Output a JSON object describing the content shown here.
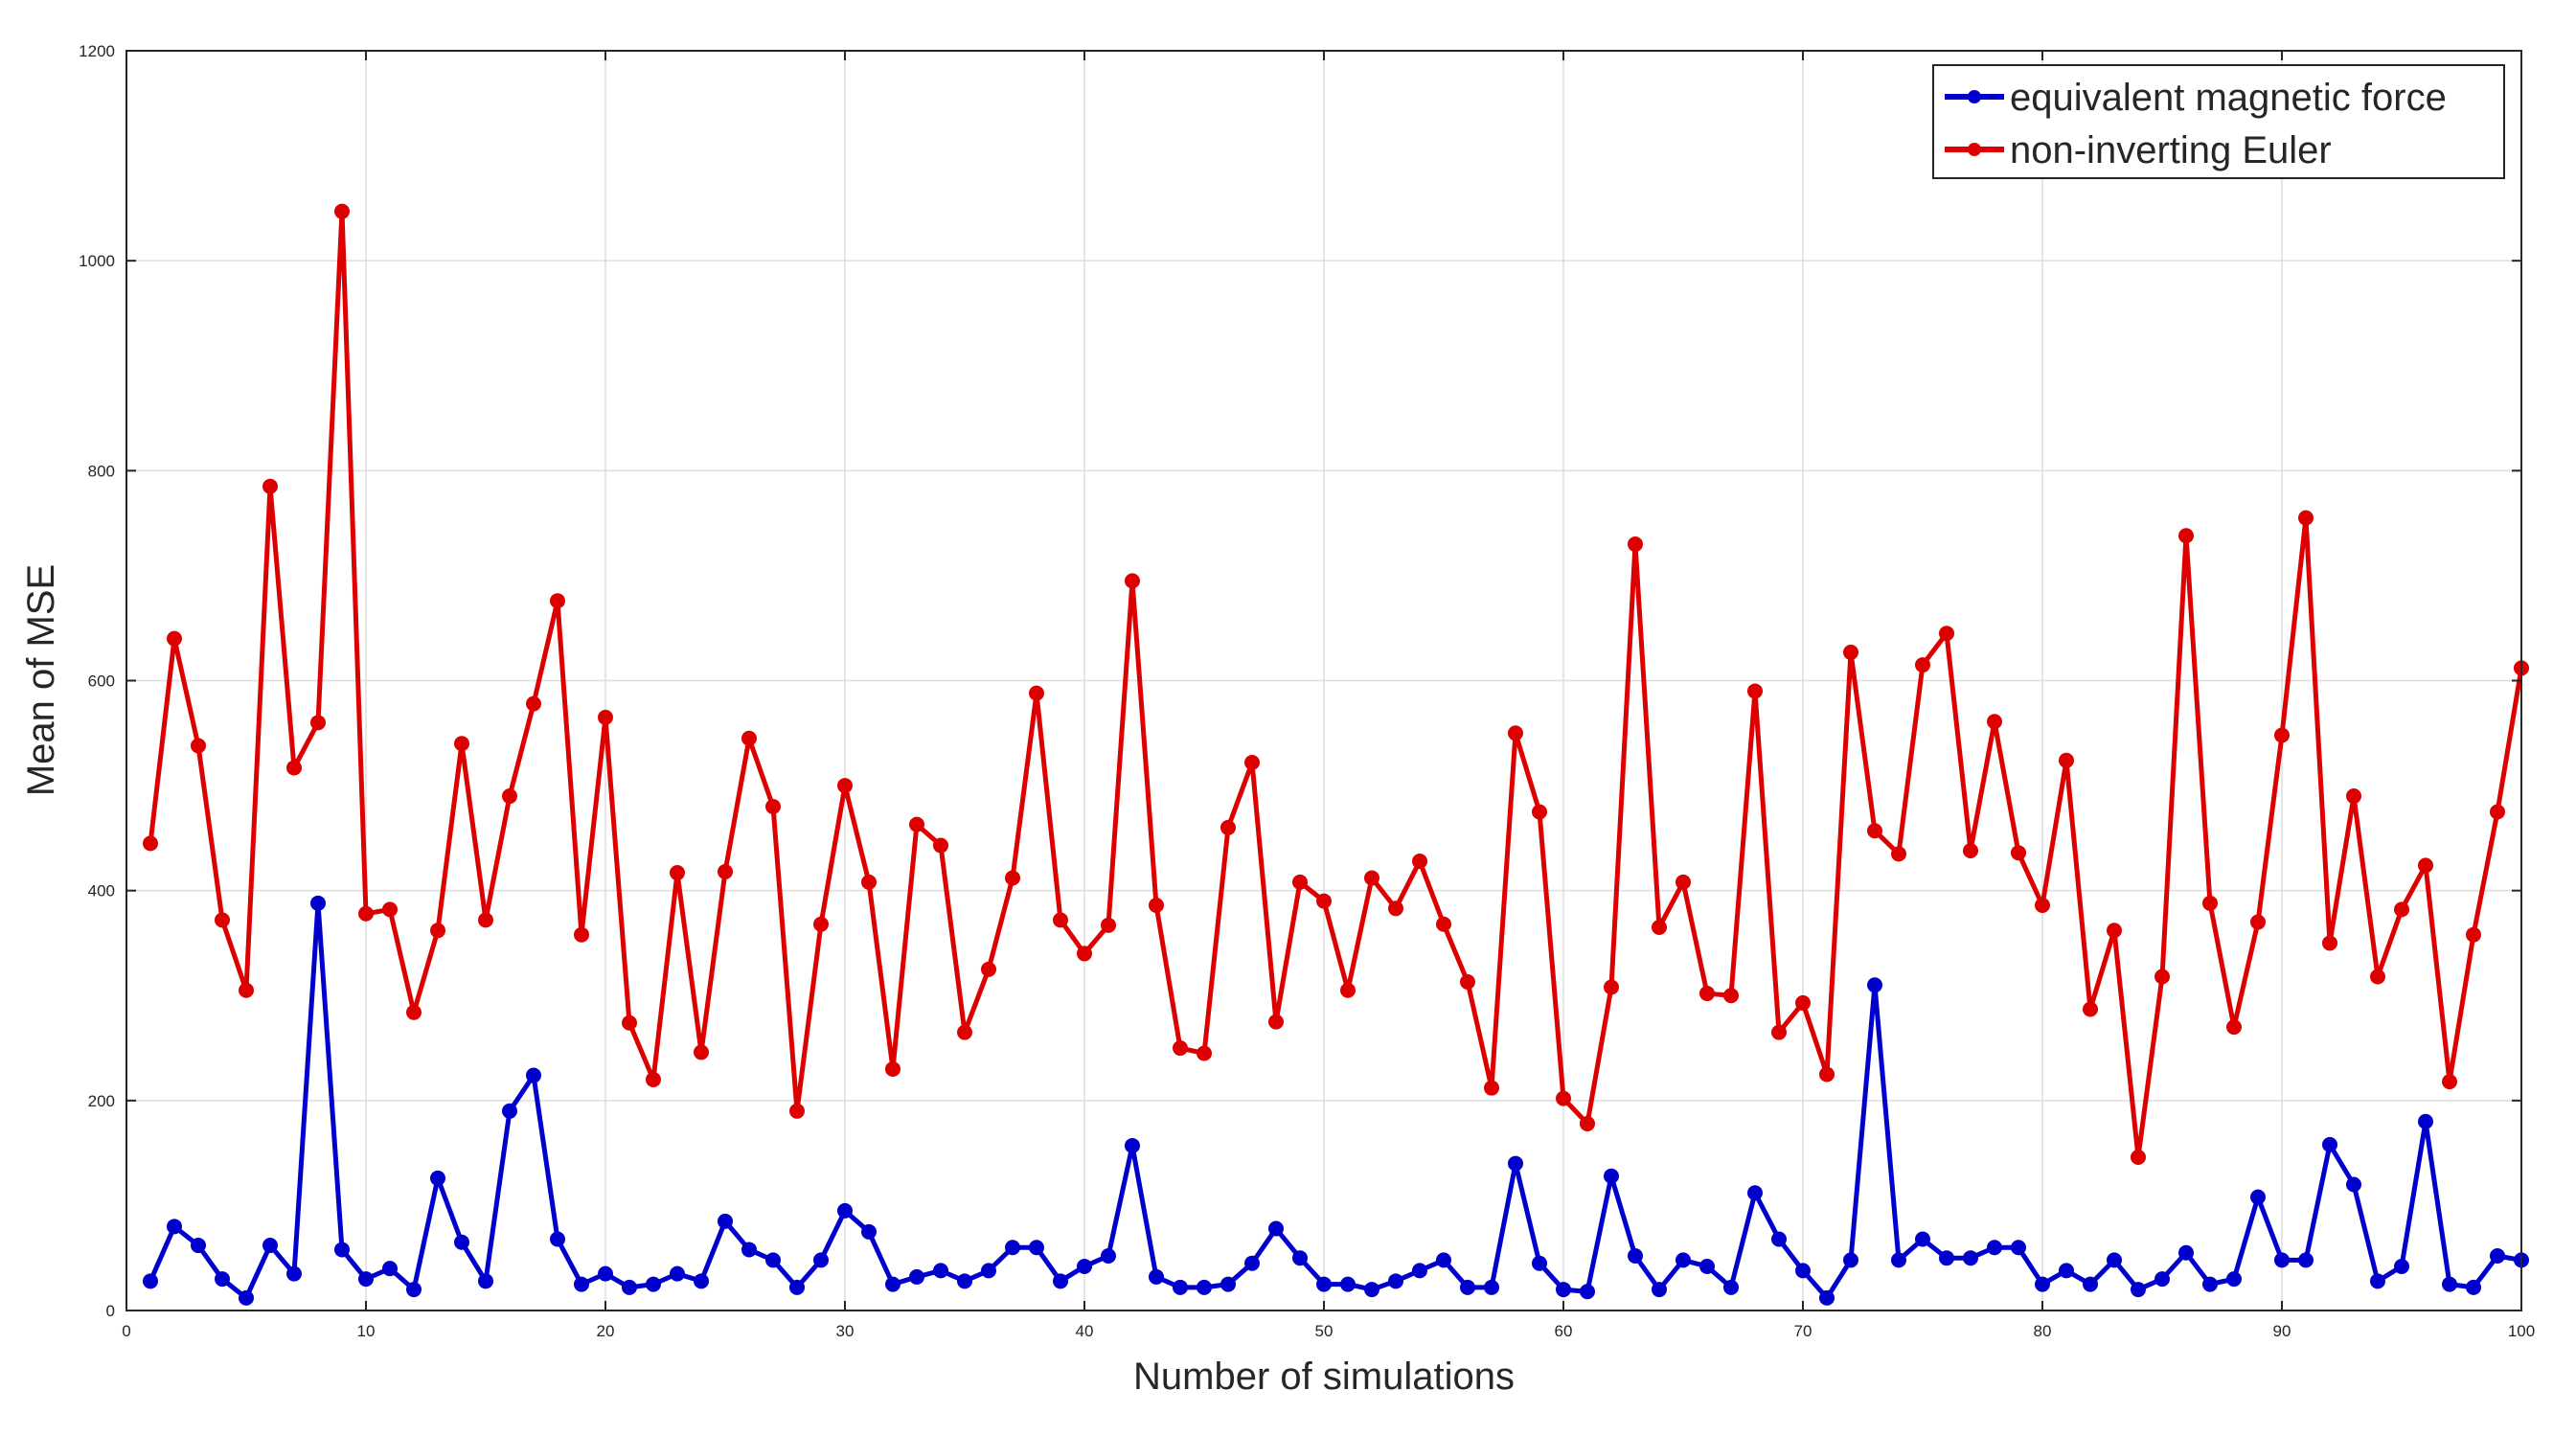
{
  "chart_data": {
    "type": "line",
    "title": "",
    "xlabel": "Number of simulations",
    "ylabel": "Mean of MSE",
    "xlim": [
      0,
      100
    ],
    "ylim": [
      0,
      1200
    ],
    "xticks": [
      0,
      10,
      20,
      30,
      40,
      50,
      60,
      70,
      80,
      90,
      100
    ],
    "yticks": [
      0,
      200,
      400,
      600,
      800,
      1000,
      1200
    ],
    "grid": true,
    "legend_position": "top-right",
    "x": [
      1,
      2,
      3,
      4,
      5,
      6,
      7,
      8,
      9,
      10,
      11,
      12,
      13,
      14,
      15,
      16,
      17,
      18,
      19,
      20,
      21,
      22,
      23,
      24,
      25,
      26,
      27,
      28,
      29,
      30,
      31,
      32,
      33,
      34,
      35,
      36,
      37,
      38,
      39,
      40,
      41,
      42,
      43,
      44,
      45,
      46,
      47,
      48,
      49,
      50,
      51,
      52,
      53,
      54,
      55,
      56,
      57,
      58,
      59,
      60,
      61,
      62,
      63,
      64,
      65,
      66,
      67,
      68,
      69,
      70,
      71,
      72,
      73,
      74,
      75,
      76,
      77,
      78,
      79,
      80,
      81,
      82,
      83,
      84,
      85,
      86,
      87,
      88,
      89,
      90,
      91,
      92,
      93,
      94,
      95,
      96,
      97,
      98,
      99,
      100
    ],
    "series": [
      {
        "name": "equivalent magnetic force",
        "color": "#0000cc",
        "values": [
          28,
          80,
          62,
          30,
          12,
          62,
          35,
          388,
          58,
          30,
          40,
          20,
          126,
          65,
          28,
          190,
          224,
          68,
          25,
          35,
          22,
          25,
          35,
          28,
          85,
          58,
          48,
          22,
          48,
          95,
          75,
          25,
          32,
          38,
          28,
          38,
          60,
          60,
          28,
          42,
          52,
          157,
          32,
          22,
          22,
          25,
          45,
          78,
          50,
          25,
          25,
          20,
          28,
          38,
          48,
          22,
          22,
          140,
          45,
          20,
          18,
          128,
          52,
          20,
          48,
          42,
          22,
          112,
          68,
          38,
          12,
          48,
          310,
          48,
          68,
          50,
          50,
          60,
          60,
          25,
          38,
          25,
          48,
          20,
          30,
          55,
          25,
          30,
          108,
          48,
          48,
          158,
          120,
          28,
          42,
          180,
          25,
          22,
          52,
          48
        ]
      },
      {
        "name": "non-inverting Euler",
        "color": "#dd0000",
        "values": [
          445,
          640,
          538,
          372,
          305,
          785,
          517,
          560,
          1047,
          378,
          382,
          284,
          362,
          540,
          372,
          490,
          578,
          676,
          358,
          565,
          274,
          220,
          417,
          246,
          418,
          545,
          480,
          190,
          368,
          500,
          408,
          230,
          463,
          443,
          265,
          325,
          412,
          588,
          372,
          340,
          367,
          695,
          386,
          250,
          245,
          460,
          522,
          275,
          408,
          390,
          305,
          412,
          383,
          428,
          368,
          313,
          212,
          550,
          475,
          202,
          178,
          308,
          730,
          365,
          408,
          302,
          300,
          590,
          265,
          293,
          225,
          627,
          457,
          435,
          615,
          645,
          438,
          561,
          436,
          386,
          524,
          287,
          362,
          146,
          318,
          738,
          388,
          270,
          370,
          548,
          755,
          350,
          490,
          318,
          382,
          424,
          218,
          358,
          475,
          612
        ]
      }
    ]
  }
}
